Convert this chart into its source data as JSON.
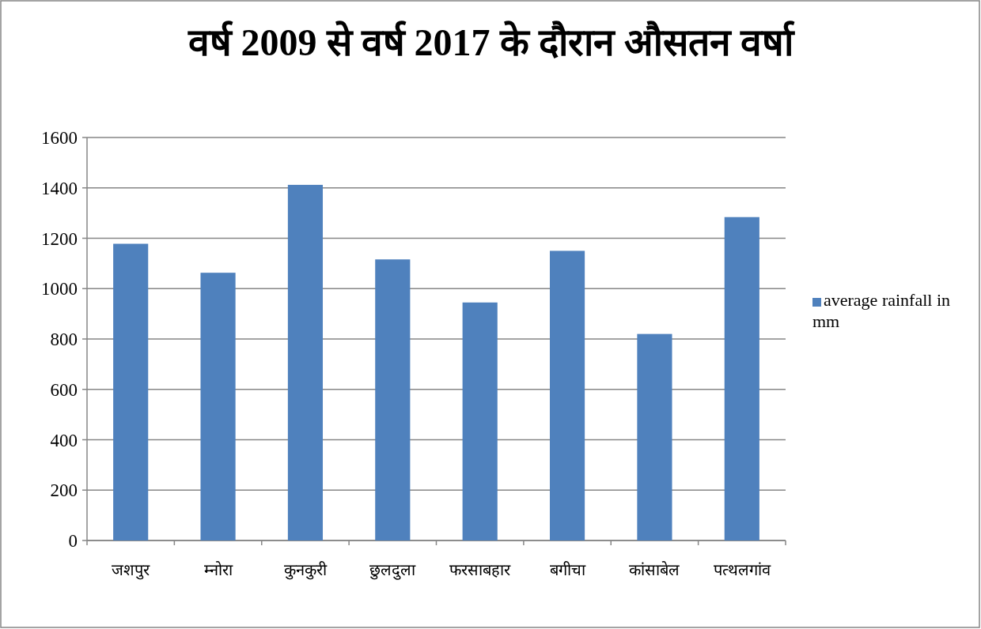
{
  "chart_data": {
    "type": "bar",
    "title": "वर्ष 2009 से वर्ष 2017 के दौरान औसतन वर्षा",
    "categories": [
      "जशपुर",
      "म्नोरा",
      "कुनकुरी",
      "छुलदुला",
      "फरसाबहार",
      "बगीचा",
      "कांसाबेल",
      "पत्थलगांव"
    ],
    "series": [
      {
        "name": "average rainfall in mm",
        "color": "#4f81bd",
        "values": [
          1178,
          1063,
          1412,
          1116,
          945,
          1150,
          820,
          1284
        ]
      }
    ],
    "ylim": [
      0,
      1600
    ],
    "yticks": [
      0,
      200,
      400,
      600,
      800,
      1000,
      1200,
      1400,
      1600
    ],
    "grid": "y",
    "legend": "right"
  }
}
